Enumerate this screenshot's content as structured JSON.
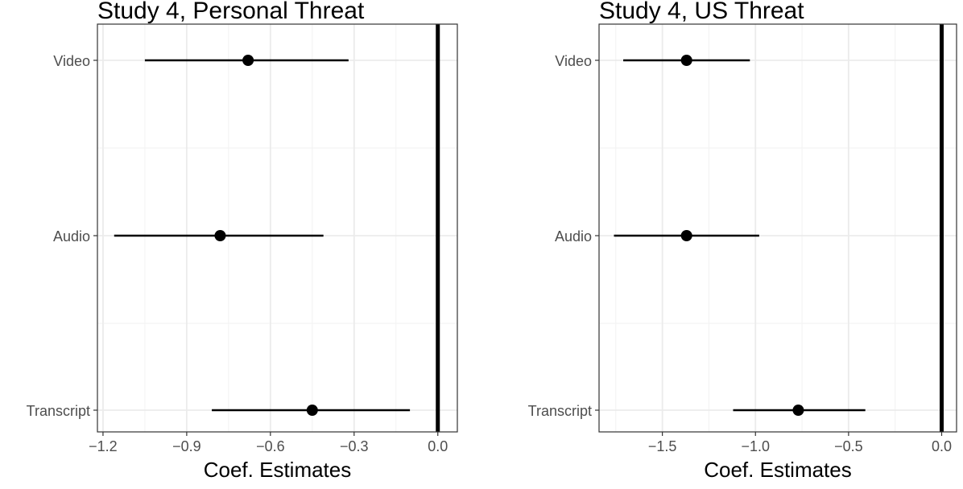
{
  "chart_data": [
    {
      "type": "errorbar",
      "title": "Study 4, Personal Threat",
      "xlabel": "Coef. Estimates",
      "ylabel": "",
      "xlim": [
        -1.22,
        0.07
      ],
      "xticks": [
        -1.2,
        -0.9,
        -0.6,
        -0.3,
        0.0
      ],
      "xtick_labels": [
        "−1.2",
        "−0.9",
        "−0.6",
        "−0.3",
        "0.0"
      ],
      "categories": [
        "Video",
        "Audio",
        "Transcript"
      ],
      "points": [
        {
          "label": "Video",
          "estimate": -0.68,
          "lower": -1.05,
          "upper": -0.32
        },
        {
          "label": "Audio",
          "estimate": -0.78,
          "lower": -1.16,
          "upper": -0.41
        },
        {
          "label": "Transcript",
          "estimate": -0.45,
          "lower": -0.81,
          "upper": -0.1
        }
      ],
      "reference_line": 0,
      "grid": true,
      "legend": "none"
    },
    {
      "type": "errorbar",
      "title": "Study 4, US Threat",
      "xlabel": "Coef. Estimates",
      "ylabel": "",
      "xlim": [
        -1.84,
        0.08
      ],
      "xticks": [
        -1.5,
        -1.0,
        -0.5,
        0.0
      ],
      "xtick_labels": [
        "−1.5",
        "−1.0",
        "−0.5",
        "0.0"
      ],
      "categories": [
        "Video",
        "Audio",
        "Transcript"
      ],
      "points": [
        {
          "label": "Video",
          "estimate": -1.37,
          "lower": -1.71,
          "upper": -1.03
        },
        {
          "label": "Audio",
          "estimate": -1.37,
          "lower": -1.76,
          "upper": -0.98
        },
        {
          "label": "Transcript",
          "estimate": -0.77,
          "lower": -1.12,
          "upper": -0.41
        }
      ],
      "reference_line": 0,
      "grid": true,
      "legend": "none"
    }
  ]
}
